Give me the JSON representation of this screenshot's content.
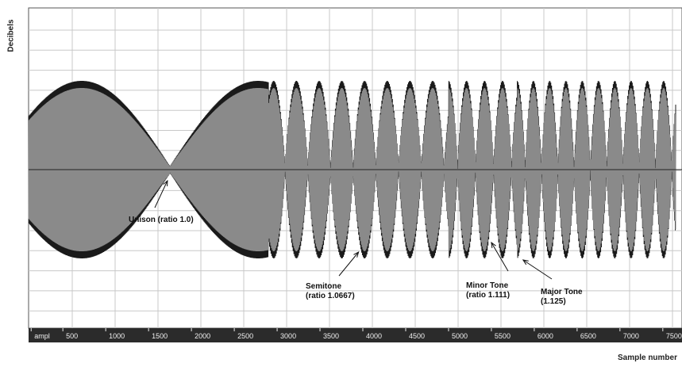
{
  "chart_data": {
    "type": "line",
    "ylabel": "Decibels",
    "xlabel": "Sample number",
    "xlim": [
      100,
      7650
    ],
    "x_ticks": [
      {
        "value": 130,
        "label": "ampl"
      },
      {
        "value": 500,
        "label": "500"
      },
      {
        "value": 1000,
        "label": "1000"
      },
      {
        "value": 1500,
        "label": "1500"
      },
      {
        "value": 2000,
        "label": "2000"
      },
      {
        "value": 2500,
        "label": "2500"
      },
      {
        "value": 3000,
        "label": "3000"
      },
      {
        "value": 3500,
        "label": "3500"
      },
      {
        "value": 4000,
        "label": "4000"
      },
      {
        "value": 4500,
        "label": "4500"
      },
      {
        "value": 5000,
        "label": "5000"
      },
      {
        "value": 5500,
        "label": "5500"
      },
      {
        "value": 6000,
        "label": "6000"
      },
      {
        "value": 6500,
        "label": "6500"
      },
      {
        "value": 7000,
        "label": "7000"
      },
      {
        "value": 7500,
        "label": "7500"
      }
    ],
    "grid": true,
    "series": [
      {
        "segment": "unison",
        "ratio": 1.0,
        "x_range": [
          100,
          2900
        ],
        "beat_period": 2060,
        "max_at": 720,
        "min_at": 1750
      },
      {
        "segment": "semitone",
        "ratio": 1.0667,
        "x_range": [
          2900,
          5000
        ],
        "beat_period": 265
      },
      {
        "segment": "minor tone",
        "ratio": 1.111,
        "x_range": [
          5000,
          5800
        ],
        "beat_period": 210
      },
      {
        "segment": "major tone",
        "ratio": 1.125,
        "x_range": [
          5800,
          7650
        ],
        "beat_period": 190
      }
    ],
    "annotations": [
      {
        "lines": [
          "Unison (ratio 1.0)"
        ],
        "target_x": 1720
      },
      {
        "lines": [
          "Semitone",
          "(ratio 1.0667)"
        ],
        "target_x": 3950
      },
      {
        "lines": [
          "Minor Tone",
          "(ratio 1.111)"
        ],
        "target_x": 5500
      },
      {
        "lines": [
          "Major Tone",
          "(1.125)"
        ],
        "target_x": 5870
      }
    ],
    "colors": {
      "background": "#ffffff",
      "grid": "#c8c8c8",
      "signal_dark": "#1a1a1a",
      "signal_light": "#8a8a8a",
      "axis_bar": "#2b2b2b",
      "tick_text": "#eeeeee"
    }
  }
}
